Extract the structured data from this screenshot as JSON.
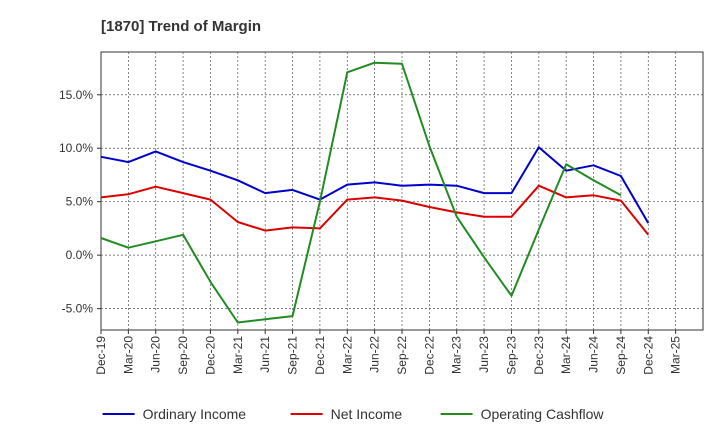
{
  "chart_data": {
    "type": "line",
    "title": "[1870]  Trend of Margin",
    "xlabel": "",
    "ylabel": "",
    "categories": [
      "Dec-19",
      "Mar-20",
      "Jun-20",
      "Sep-20",
      "Dec-20",
      "Mar-21",
      "Jun-21",
      "Sep-21",
      "Dec-21",
      "Mar-22",
      "Jun-22",
      "Sep-22",
      "Dec-22",
      "Mar-23",
      "Jun-23",
      "Sep-23",
      "Dec-23",
      "Mar-24",
      "Jun-24",
      "Sep-24",
      "Dec-24",
      "Mar-25"
    ],
    "ylim": [
      -7.0,
      19.0
    ],
    "yticks": [
      -5.0,
      0.0,
      5.0,
      10.0,
      15.0
    ],
    "ytick_labels": [
      "-5.0%",
      "0.0%",
      "5.0%",
      "10.0%",
      "15.0%"
    ],
    "grid": true,
    "legend_position": "bottom",
    "series": [
      {
        "name": "Ordinary Income",
        "color": "#0000cc",
        "values": [
          9.2,
          8.7,
          9.7,
          8.7,
          7.9,
          7.0,
          5.8,
          6.1,
          5.2,
          6.6,
          6.8,
          6.5,
          6.6,
          6.5,
          5.8,
          5.8,
          10.1,
          7.9,
          8.4,
          7.4,
          3.0,
          null
        ]
      },
      {
        "name": "Net Income",
        "color": "#dd0000",
        "values": [
          5.4,
          5.7,
          6.4,
          5.8,
          5.2,
          3.1,
          2.3,
          2.6,
          2.5,
          5.2,
          5.4,
          5.1,
          4.5,
          4.0,
          3.6,
          3.6,
          6.5,
          5.4,
          5.6,
          5.1,
          1.9,
          null
        ]
      },
      {
        "name": "Operating Cashflow",
        "color": "#228b22",
        "values": [
          1.6,
          0.7,
          1.3,
          1.9,
          -2.5,
          -6.3,
          -6.0,
          -5.7,
          5.0,
          17.1,
          18.0,
          17.9,
          10.2,
          3.6,
          -0.2,
          -3.8,
          2.4,
          8.5,
          7.0,
          5.6,
          null,
          null
        ]
      }
    ]
  }
}
